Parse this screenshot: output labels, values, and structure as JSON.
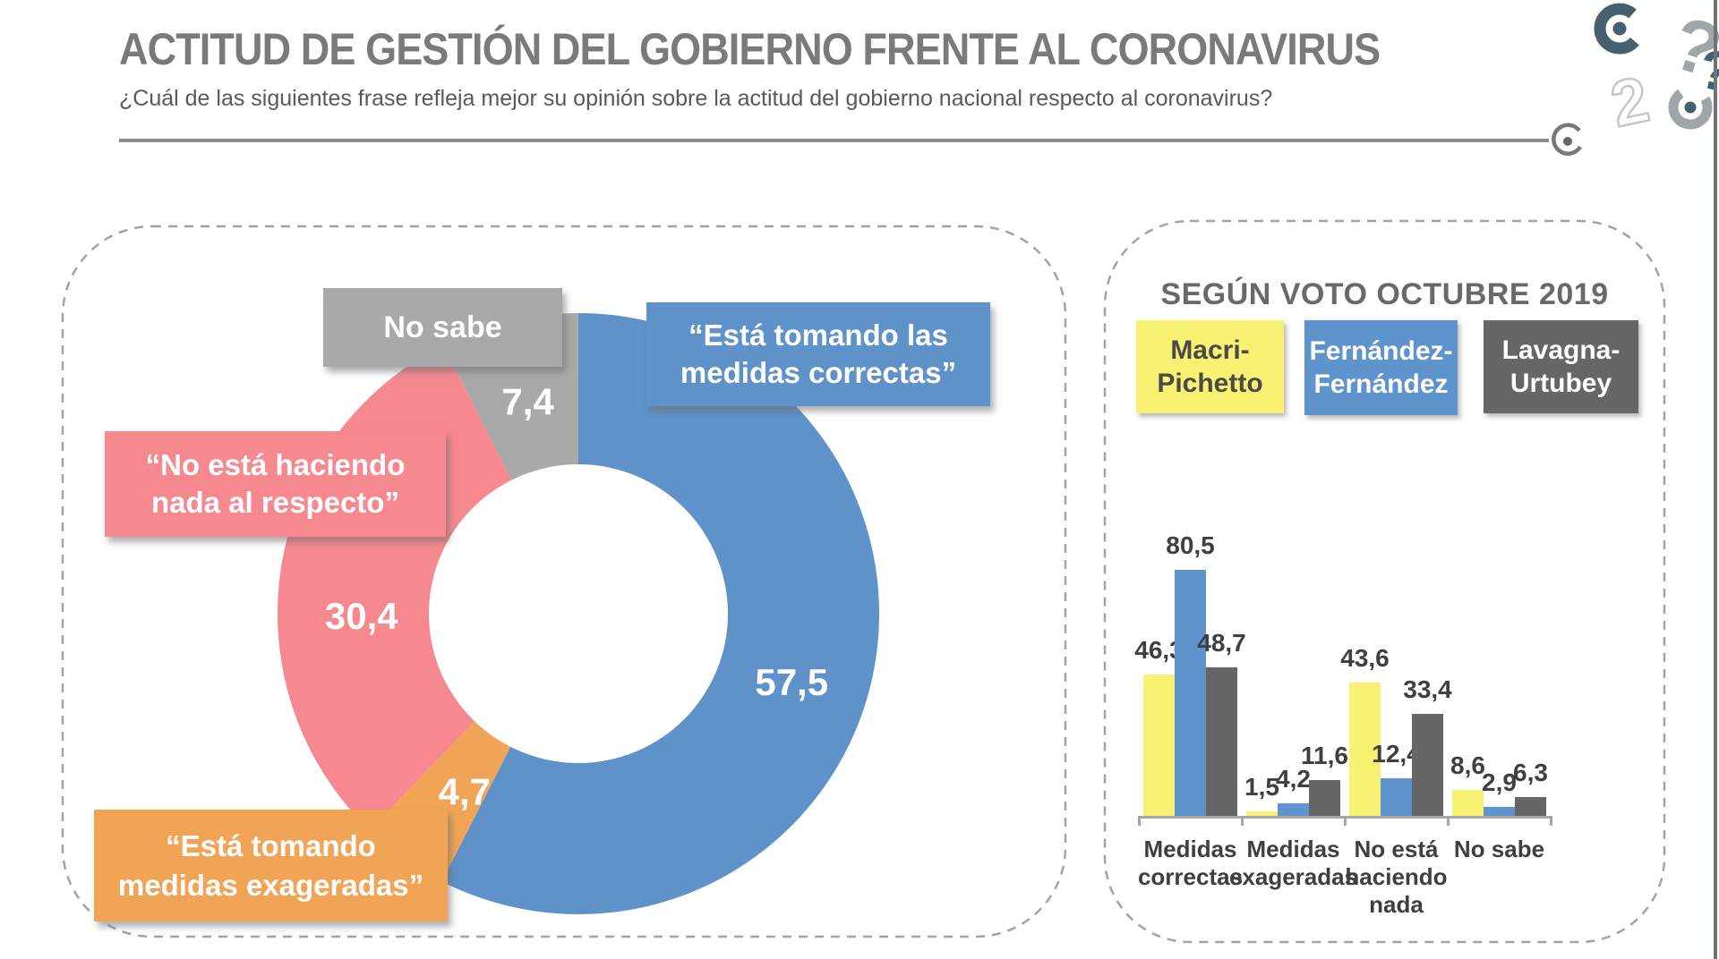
{
  "header": {
    "title": "ACTITUD DE GESTIÓN DEL GOBIERNO FRENTE AL CORONAVIRUS",
    "subtitle": "¿Cuál de las siguientes frase refleja mejor su opinión sobre la actitud del gobierno nacional respecto al coronavirus?"
  },
  "colors": {
    "title": "#7a7a7a",
    "subtitle": "#595959",
    "divider": "#8c8c8c",
    "panel_border": "#a3a3a3",
    "logo_dark": "#46616d",
    "logo_light": "#9fa6a9",
    "bar_value_label": "#3f3f3f",
    "background": "#ffffff"
  },
  "chart_data": [
    {
      "type": "pie",
      "donut": true,
      "title": "",
      "slices": [
        {
          "label": "“Está tomando las medidas correctas”",
          "label_lines": [
            "“Está tomando las",
            "medidas correctas”"
          ],
          "value": 57.5,
          "display": "57,5",
          "color": "#5e92c9",
          "text_color": "#ffffff"
        },
        {
          "label": "“Está tomando medidas exageradas”",
          "label_lines": [
            "“Está tomando",
            "medidas exageradas”"
          ],
          "value": 4.7,
          "display": "4,7",
          "color": "#f1a455",
          "text_color": "#ffffff"
        },
        {
          "label": "“No está haciendo nada al respecto”",
          "label_lines": [
            "“No está haciendo",
            "nada al respecto”"
          ],
          "value": 30.4,
          "display": "30,4",
          "color": "#f6898f",
          "text_color": "#ffffff"
        },
        {
          "label": "No sabe",
          "label_lines": [
            "No sabe"
          ],
          "value": 7.4,
          "display": "7,4",
          "color": "#a9a9a9",
          "text_color": "#ffffff"
        }
      ]
    },
    {
      "type": "bar",
      "title": "SEGÚN VOTO OCTUBRE 2019",
      "categories": [
        "Medidas correctas",
        "Medidas exageradas",
        "No está haciendo nada",
        "No sabe"
      ],
      "category_lines": [
        [
          "Medidas",
          "correctas"
        ],
        [
          "Medidas",
          "exageradas"
        ],
        [
          "No está",
          "haciendo",
          "nada"
        ],
        [
          "No sabe"
        ]
      ],
      "series": [
        {
          "name": "Macri-Pichetto",
          "name_lines": [
            "Macri-",
            "Pichetto"
          ],
          "color": "#f8f171",
          "legend_text_color": "#4a4a4a",
          "values": [
            46.3,
            1.5,
            43.6,
            8.6
          ],
          "displays": [
            "46,3",
            "1,5",
            "43,6",
            "8,6"
          ]
        },
        {
          "name": "Fernández-Fernández",
          "name_lines": [
            "Fernández-",
            "Fernández"
          ],
          "color": "#5e94cb",
          "legend_text_color": "#ffffff",
          "values": [
            80.5,
            4.2,
            12.4,
            2.9
          ],
          "displays": [
            "80,5",
            "4,2",
            "12,4",
            "2,9"
          ]
        },
        {
          "name": "Lavagna-Urtubey",
          "name_lines": [
            "Lavagna-",
            "Urtubey"
          ],
          "color": "#666666",
          "legend_text_color": "#ffffff",
          "values": [
            48.7,
            11.6,
            33.4,
            6.3
          ],
          "displays": [
            "48,7",
            "11,6",
            "33,4",
            "6,3"
          ]
        }
      ],
      "ylim": [
        0,
        85
      ],
      "grid": false,
      "legend_position": "top"
    }
  ]
}
